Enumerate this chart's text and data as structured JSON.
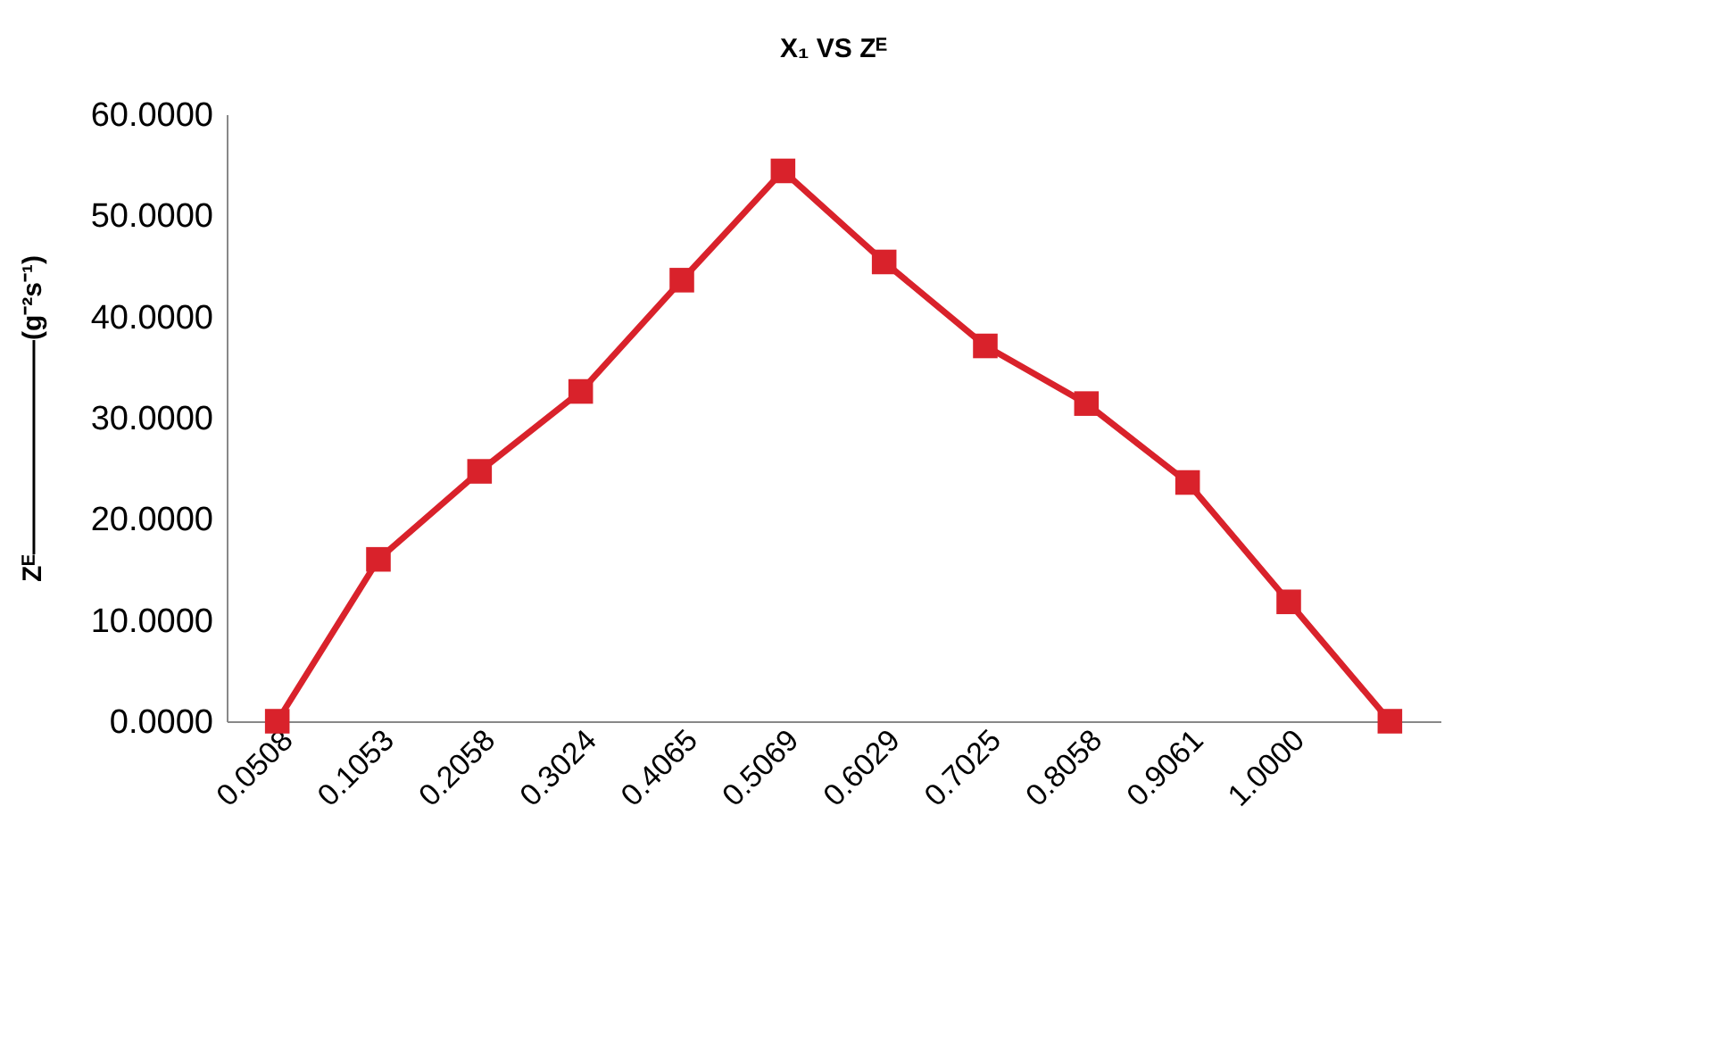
{
  "chart_data": {
    "type": "line",
    "title": "X₁ VS Zᴱ",
    "ylabel": "Zᴱ————————(g⁻²s⁻¹)",
    "categories": [
      "0.0508",
      "0.1053",
      "0.2058",
      "0.3024",
      "0.4065",
      "0.5069",
      "0.6029",
      "0.7025",
      "0.8058",
      "0.9061",
      "1.0000",
      null
    ],
    "series": [
      {
        "color": "#d9222b",
        "values": [
          0,
          16,
          24.7,
          32.6,
          43.6,
          54.4,
          45.4,
          37.1,
          31.4,
          23.6,
          11.8,
          0
        ]
      }
    ],
    "ylim": [
      0,
      60
    ],
    "yticks": [
      {
        "value": 0,
        "label": "0.0000"
      },
      {
        "value": 10,
        "label": "10.0000"
      },
      {
        "value": 20,
        "label": "20.0000"
      },
      {
        "value": 30,
        "label": "30.0000"
      },
      {
        "value": 40,
        "label": "40.0000"
      },
      {
        "value": 50,
        "label": "50.0000"
      },
      {
        "value": 60,
        "label": "60.0000"
      }
    ],
    "grid": false,
    "marker": "square",
    "line_style": "solid"
  }
}
